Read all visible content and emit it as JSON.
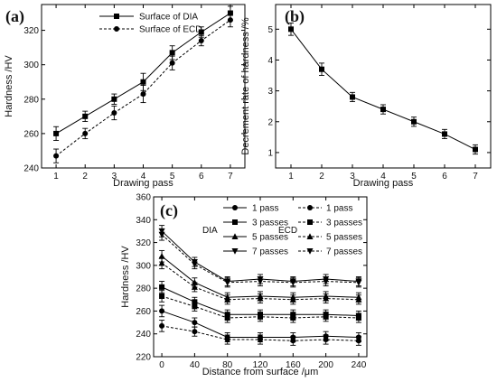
{
  "chart_data": [
    {
      "panel": "(a)",
      "type": "line",
      "xlabel": "Drawing pass",
      "ylabel": "Hardness /HV",
      "x": [
        1,
        2,
        3,
        4,
        5,
        6,
        7
      ],
      "xlim": [
        0.5,
        7.5
      ],
      "ylim": [
        240,
        335
      ],
      "yticks": [
        240,
        260,
        280,
        300,
        320
      ],
      "grid": false,
      "legend_position": "top-left",
      "series": [
        {
          "name": "Surface of DIA",
          "values": [
            260,
            270,
            280,
            290,
            307,
            319,
            330
          ],
          "errors": [
            4,
            3,
            3,
            5,
            4,
            3,
            4
          ],
          "marker": "square",
          "dashed": false
        },
        {
          "name": "Surface of ECD",
          "values": [
            247,
            260,
            272,
            283,
            301,
            314,
            326
          ],
          "errors": [
            4,
            3,
            4,
            5,
            4,
            3,
            4
          ],
          "marker": "circle",
          "dashed": true
        }
      ]
    },
    {
      "panel": "(b)",
      "type": "line",
      "xlabel": "Drawing pass",
      "ylabel": "Decrement rate of hardness /%",
      "x": [
        1,
        2,
        3,
        4,
        5,
        6,
        7
      ],
      "xlim": [
        0.5,
        7.5
      ],
      "ylim": [
        0.5,
        5.8
      ],
      "yticks": [
        1,
        2,
        3,
        4,
        5
      ],
      "grid": false,
      "series": [
        {
          "name": "",
          "values": [
            5.0,
            3.7,
            2.8,
            2.4,
            2.0,
            1.6,
            1.1
          ],
          "errors": [
            0.2,
            0.2,
            0.15,
            0.15,
            0.15,
            0.15,
            0.15
          ],
          "marker": "square",
          "dashed": false
        }
      ]
    },
    {
      "panel": "(c)",
      "type": "line",
      "xlabel": "Distance from surface /μm",
      "ylabel": "Hardness /HV",
      "x": [
        0,
        40,
        80,
        120,
        160,
        200,
        240
      ],
      "xlim": [
        -10,
        250
      ],
      "ylim": [
        220,
        360
      ],
      "yticks": [
        220,
        240,
        260,
        280,
        300,
        320,
        340,
        360
      ],
      "grid": false,
      "legend_position": "top",
      "legend_group_labels": [
        "DIA",
        "ECD"
      ],
      "series": [
        {
          "name": "1 pass",
          "group": "DIA",
          "marker": "circle",
          "dashed": false,
          "values": [
            260,
            250,
            237,
            237,
            237,
            238,
            237
          ],
          "errors": [
            5,
            4,
            4,
            4,
            4,
            4,
            4
          ]
        },
        {
          "name": "3 passes",
          "group": "DIA",
          "marker": "square",
          "dashed": false,
          "values": [
            281,
            268,
            257,
            257,
            257,
            257,
            256
          ],
          "errors": [
            5,
            4,
            4,
            4,
            4,
            4,
            4
          ]
        },
        {
          "name": "5 passes",
          "group": "DIA",
          "marker": "triangle",
          "dashed": false,
          "values": [
            308,
            285,
            272,
            273,
            272,
            273,
            272
          ],
          "errors": [
            5,
            4,
            4,
            4,
            4,
            4,
            4
          ]
        },
        {
          "name": "7 passes",
          "group": "DIA",
          "marker": "invtri",
          "dashed": false,
          "values": [
            330,
            303,
            286,
            288,
            286,
            288,
            286
          ],
          "errors": [
            5,
            4,
            4,
            4,
            4,
            4,
            4
          ]
        },
        {
          "name": "1 pass",
          "group": "ECD",
          "marker": "circle",
          "dashed": true,
          "values": [
            247,
            242,
            235,
            235,
            234,
            235,
            234
          ],
          "errors": [
            5,
            4,
            4,
            4,
            4,
            4,
            4
          ]
        },
        {
          "name": "3 passes",
          "group": "ECD",
          "marker": "square",
          "dashed": true,
          "values": [
            273,
            264,
            254,
            255,
            254,
            255,
            254
          ],
          "errors": [
            5,
            4,
            4,
            4,
            4,
            4,
            4
          ]
        },
        {
          "name": "5 passes",
          "group": "ECD",
          "marker": "triangle",
          "dashed": true,
          "values": [
            302,
            281,
            270,
            271,
            270,
            271,
            270
          ],
          "errors": [
            5,
            4,
            4,
            4,
            4,
            4,
            4
          ]
        },
        {
          "name": "7 passes",
          "group": "ECD",
          "marker": "invtri",
          "dashed": true,
          "values": [
            327,
            301,
            285,
            286,
            285,
            286,
            285
          ],
          "errors": [
            5,
            4,
            4,
            4,
            4,
            4,
            4
          ]
        }
      ]
    }
  ]
}
